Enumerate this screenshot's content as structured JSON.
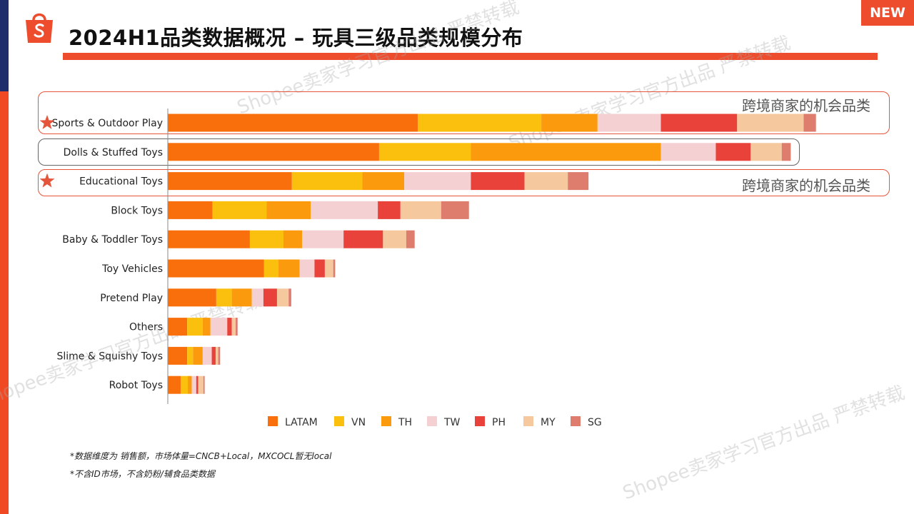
{
  "header": {
    "title": "2024H1品类数据概况 – 玩具三级品类规模分布",
    "badge": "NEW"
  },
  "watermark": {
    "text": "Shopee卖家学习官方出品 严禁转载"
  },
  "highlight": {
    "opportunity_label": "跨境商家的机会品类"
  },
  "notes": {
    "line1": "*数据维度为 销售额，市场体量=CNCB+Local，MXCOCL暂无local",
    "line2": "*不含ID市场，不含奶粉/辅食品类数据"
  },
  "colors": {
    "accent": "#ee4d2d",
    "navy": "#1f2c6b",
    "star": "#e4553c"
  },
  "chart_data": {
    "type": "bar",
    "orientation": "horizontal",
    "stacked": true,
    "title": "",
    "xlabel": "",
    "ylabel": "",
    "xlim": [
      0,
      100
    ],
    "legend_position": "bottom",
    "categories": [
      "Sports & Outdoor Play",
      "Dolls & Stuffed Toys",
      "Educational Toys",
      "Block Toys",
      "Baby & Toddler Toys",
      "Toy Vehicles",
      "Pretend Play",
      "Others",
      "Slime & Squishy Toys",
      "Robot Toys"
    ],
    "starred": [
      "Sports & Outdoor Play",
      "Educational Toys"
    ],
    "highlighted": [
      "Sports & Outdoor Play",
      "Educational Toys"
    ],
    "outlined": [
      "Dolls & Stuffed Toys"
    ],
    "series": [
      {
        "name": "LATAM",
        "color": "#f86f0c",
        "values": [
          38.7,
          32.7,
          19.2,
          6.9,
          12.7,
          14.9,
          7.5,
          3.0,
          3.0,
          2.0
        ]
      },
      {
        "name": "VN",
        "color": "#fbbf0d",
        "values": [
          19.1,
          14.2,
          10.9,
          8.4,
          5.2,
          2.2,
          2.4,
          2.4,
          0.9,
          1.1
        ]
      },
      {
        "name": "TH",
        "color": "#fa9a0c",
        "values": [
          8.7,
          29.4,
          6.5,
          6.8,
          2.9,
          3.3,
          3.1,
          1.2,
          1.5,
          0.6
        ]
      },
      {
        "name": "TW",
        "color": "#f5d0d2",
        "values": [
          9.8,
          8.5,
          10.3,
          10.4,
          6.4,
          2.3,
          1.8,
          2.6,
          1.4,
          0.7
        ]
      },
      {
        "name": "PH",
        "color": "#e8423b",
        "values": [
          11.8,
          5.4,
          8.3,
          3.5,
          6.1,
          1.6,
          2.1,
          0.7,
          0.6,
          0.3
        ]
      },
      {
        "name": "MY",
        "color": "#f6c89d",
        "values": [
          10.3,
          4.8,
          6.7,
          6.3,
          3.6,
          1.3,
          1.8,
          0.6,
          0.4,
          0.8
        ]
      },
      {
        "name": "SG",
        "color": "#de7c6e",
        "values": [
          1.9,
          1.4,
          3.2,
          4.3,
          1.3,
          0.3,
          0.4,
          0.3,
          0.3,
          0.2
        ]
      }
    ]
  }
}
